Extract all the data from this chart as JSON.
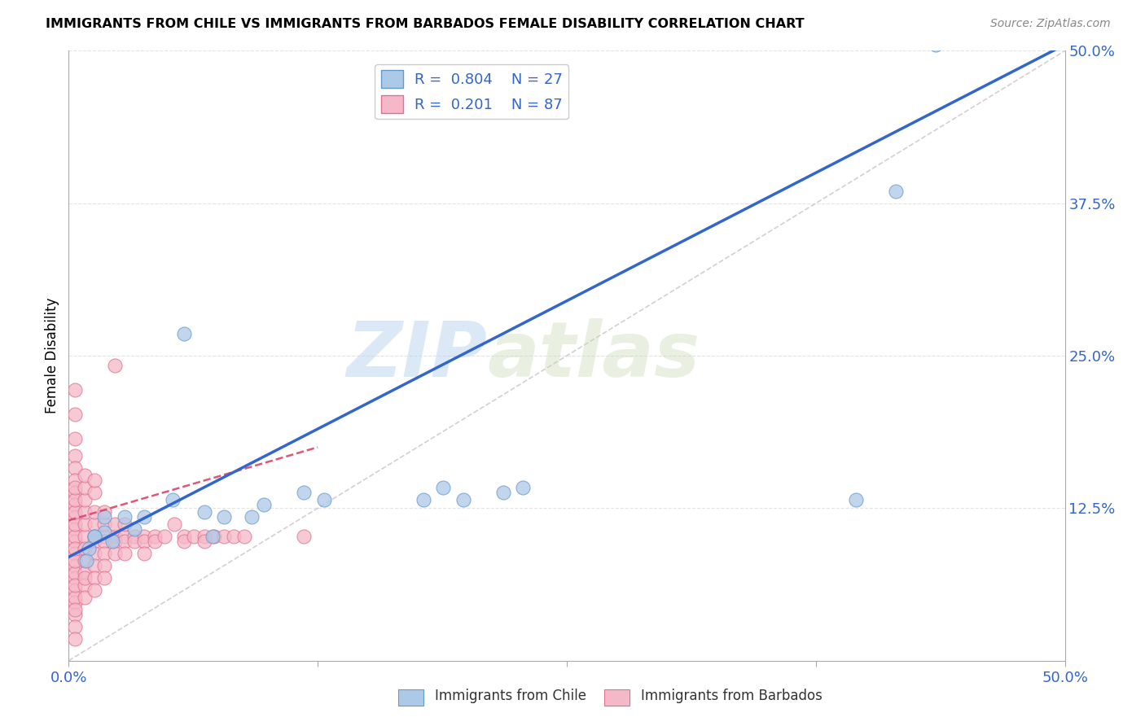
{
  "title": "IMMIGRANTS FROM CHILE VS IMMIGRANTS FROM BARBADOS FEMALE DISABILITY CORRELATION CHART",
  "source": "Source: ZipAtlas.com",
  "ylabel": "Female Disability",
  "xmin": 0.0,
  "xmax": 0.5,
  "ymin": 0.0,
  "ymax": 0.5,
  "xticks": [
    0.0,
    0.125,
    0.25,
    0.375,
    0.5
  ],
  "yticks": [
    0.125,
    0.25,
    0.375,
    0.5
  ],
  "xtick_labels": [
    "0.0%",
    "",
    "",
    "",
    "50.0%"
  ],
  "ytick_labels": [
    "12.5%",
    "25.0%",
    "37.5%",
    "50.0%"
  ],
  "legend_bottom": [
    "Immigrants from Chile",
    "Immigrants from Barbados"
  ],
  "chile_color": "#adc9e8",
  "barbados_color": "#f5b8c8",
  "chile_edge_color": "#6699cc",
  "barbados_edge_color": "#e07090",
  "chile_R": 0.804,
  "chile_N": 27,
  "barbados_R": 0.201,
  "barbados_N": 87,
  "chile_line_color": "#3366cc",
  "barbados_line_color": "#dd4466",
  "ref_line_color": "#cccccc",
  "watermark_zip": "ZIP",
  "watermark_atlas": "atlas",
  "chile_line_x0": 0.0,
  "chile_line_y0": 0.085,
  "chile_line_x1": 0.5,
  "chile_line_y1": 0.505,
  "barbados_line_x0": 0.0,
  "barbados_line_y0": 0.115,
  "barbados_line_x1": 0.125,
  "barbados_line_y1": 0.175,
  "chile_scatter_x": [
    0.018,
    0.01,
    0.028,
    0.013,
    0.022,
    0.033,
    0.038,
    0.018,
    0.013,
    0.009,
    0.058,
    0.052,
    0.068,
    0.078,
    0.072,
    0.092,
    0.098,
    0.118,
    0.128,
    0.178,
    0.188,
    0.198,
    0.218,
    0.228,
    0.395,
    0.415,
    0.435
  ],
  "chile_scatter_y": [
    0.105,
    0.092,
    0.118,
    0.102,
    0.098,
    0.108,
    0.118,
    0.118,
    0.102,
    0.082,
    0.268,
    0.132,
    0.122,
    0.118,
    0.102,
    0.118,
    0.128,
    0.138,
    0.132,
    0.132,
    0.142,
    0.132,
    0.138,
    0.142,
    0.132,
    0.385,
    0.505
  ],
  "barbados_scatter_x": [
    0.003,
    0.003,
    0.003,
    0.003,
    0.003,
    0.003,
    0.003,
    0.003,
    0.003,
    0.003,
    0.003,
    0.003,
    0.003,
    0.003,
    0.003,
    0.003,
    0.003,
    0.003,
    0.003,
    0.003,
    0.003,
    0.003,
    0.003,
    0.003,
    0.003,
    0.003,
    0.003,
    0.003,
    0.003,
    0.003,
    0.008,
    0.008,
    0.008,
    0.008,
    0.008,
    0.008,
    0.008,
    0.008,
    0.008,
    0.008,
    0.008,
    0.008,
    0.013,
    0.013,
    0.013,
    0.013,
    0.013,
    0.013,
    0.013,
    0.013,
    0.013,
    0.013,
    0.018,
    0.018,
    0.018,
    0.018,
    0.018,
    0.018,
    0.018,
    0.023,
    0.023,
    0.023,
    0.023,
    0.023,
    0.028,
    0.028,
    0.028,
    0.028,
    0.033,
    0.033,
    0.038,
    0.038,
    0.038,
    0.043,
    0.043,
    0.048,
    0.053,
    0.058,
    0.058,
    0.063,
    0.068,
    0.068,
    0.073,
    0.078,
    0.083,
    0.088,
    0.118
  ],
  "barbados_scatter_y": [
    0.222,
    0.202,
    0.182,
    0.168,
    0.158,
    0.148,
    0.138,
    0.128,
    0.118,
    0.108,
    0.098,
    0.088,
    0.078,
    0.068,
    0.058,
    0.048,
    0.038,
    0.028,
    0.018,
    0.102,
    0.112,
    0.122,
    0.132,
    0.142,
    0.052,
    0.042,
    0.072,
    0.082,
    0.092,
    0.062,
    0.102,
    0.112,
    0.092,
    0.082,
    0.122,
    0.072,
    0.062,
    0.052,
    0.132,
    0.142,
    0.152,
    0.068,
    0.102,
    0.112,
    0.122,
    0.098,
    0.088,
    0.078,
    0.068,
    0.058,
    0.138,
    0.148,
    0.102,
    0.112,
    0.098,
    0.088,
    0.078,
    0.068,
    0.122,
    0.102,
    0.112,
    0.098,
    0.088,
    0.242,
    0.102,
    0.112,
    0.098,
    0.088,
    0.102,
    0.098,
    0.102,
    0.098,
    0.088,
    0.102,
    0.098,
    0.102,
    0.112,
    0.102,
    0.098,
    0.102,
    0.102,
    0.098,
    0.102,
    0.102,
    0.102,
    0.102,
    0.102
  ]
}
